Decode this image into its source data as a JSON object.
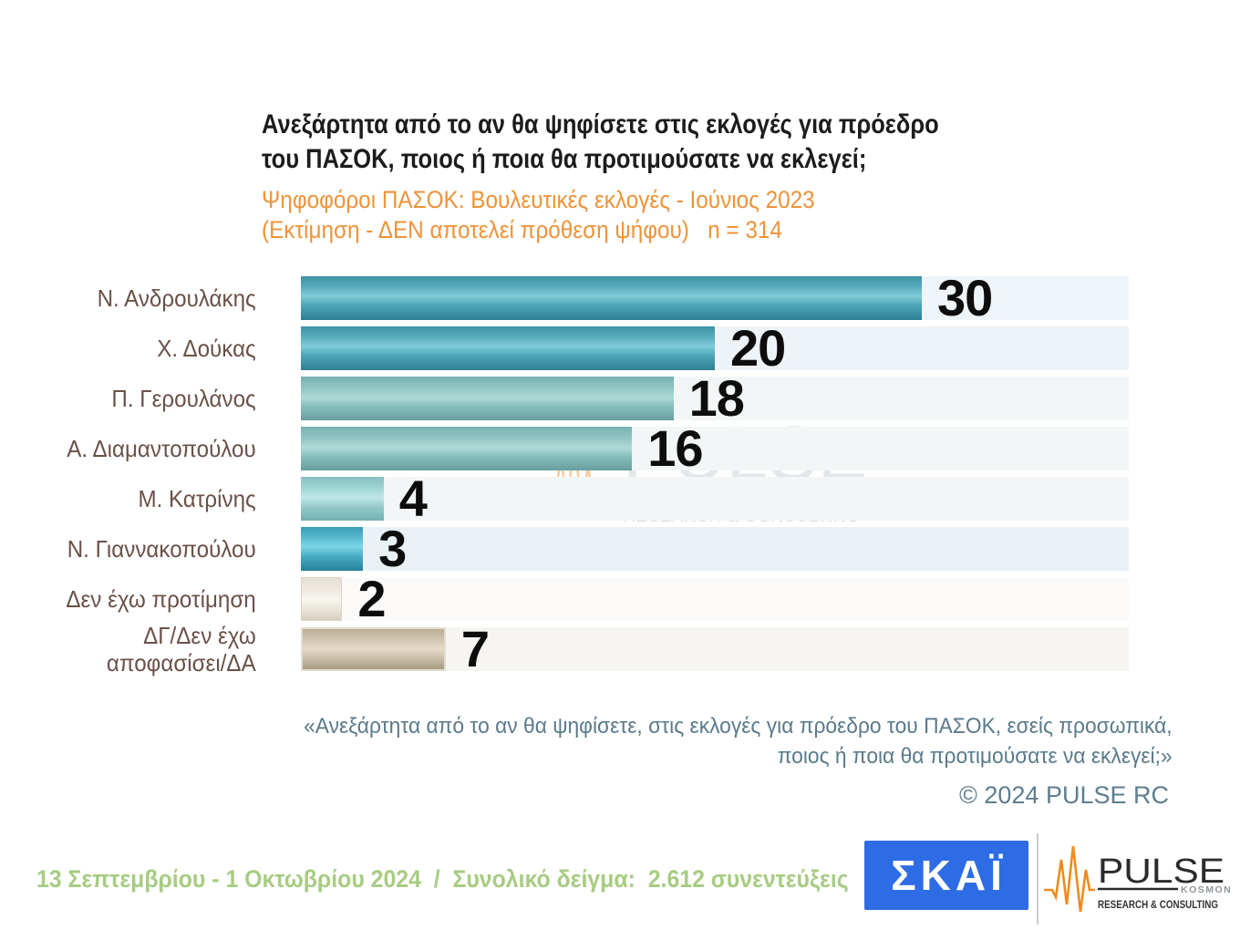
{
  "header": {
    "title_lines": [
      "Ανεξάρτητα από το αν θα ψηφίσετε στις εκλογές για πρόεδρο",
      "του ΠΑΣΟΚ, ποιος ή ποια θα προτιμούσατε να εκλεγεί;"
    ],
    "subtitle_lines": [
      "Ψηφοφόροι ΠΑΣΟΚ: Βουλευτικές εκλογές - Ιούνιος 2023",
      "(Εκτίμηση - ΔΕΝ αποτελεί πρόθεση ψήφου)   n = 314"
    ],
    "sample_size": "n = 314"
  },
  "chart_data": {
    "type": "bar",
    "orientation": "horizontal",
    "title": "Ανεξάρτητα από το αν θα ψηφίσετε στις εκλογές για πρόεδρο του ΠΑΣΟΚ, ποιος ή ποια θα προτιμούσατε να εκλεγεί;",
    "subtitle": "Ψηφοφόροι ΠΑΣΟΚ: Βουλευτικές εκλογές - Ιούνιος 2023 (Εκτίμηση - ΔΕΝ αποτελεί πρόθεση ψήφου) n = 314",
    "categories": [
      "Ν. Ανδρουλάκης",
      "Χ. Δούκας",
      "Π. Γερουλάνος",
      "Α. Διαμαντοπούλου",
      "Μ. Κατρίνης",
      "Ν. Γιαννακοπούλου",
      "Δεν έχω προτίμηση",
      "ΔΓ/Δεν έχω αποφασίσει/ΔΑ"
    ],
    "values": [
      30,
      20,
      18,
      16,
      4,
      3,
      2,
      7
    ],
    "axis_max": 40,
    "grid": false,
    "legend": false,
    "value_labels_shown": true,
    "rows": [
      {
        "label": "Ν. Ανδρουλάκης",
        "value": 30,
        "palette": "teal",
        "bar_color": "#4aa3b5",
        "track_color": "#eef4f7"
      },
      {
        "label": "Χ. Δούκας",
        "value": 20,
        "palette": "teal",
        "bar_color": "#4aa3b5",
        "track_color": "#edf3f6"
      },
      {
        "label": "Π. Γερουλάνος",
        "value": 18,
        "palette": "sage",
        "bar_color": "#8fc2c1",
        "track_color": "#f2f6f7"
      },
      {
        "label": "Α. Διαμαντοπούλου",
        "value": 16,
        "palette": "sage",
        "bar_color": "#8fc2c1",
        "track_color": "#f2f6f7"
      },
      {
        "label": "Μ. Κατρίνης",
        "value": 4,
        "palette": "sage-light",
        "bar_color": "#a5d6d7",
        "track_color": "#f3f6f7"
      },
      {
        "label": "Ν. Γιαννακοπούλου",
        "value": 3,
        "palette": "teal-bright",
        "bar_color": "#4fb1c8",
        "track_color": "#e9f1f5"
      },
      {
        "label": "Δεν έχω προτίμηση",
        "value": 2,
        "palette": "cream",
        "bar_color": "#efeae1",
        "track_color": "#fbfaf8"
      },
      {
        "label": "ΔΓ/Δεν έχω αποφασίσει/ΔΑ",
        "value": 7,
        "palette": "tan",
        "bar_color": "#cfc3ad",
        "track_color": "#f7f5f1"
      }
    ]
  },
  "watermark": {
    "brand": "PULSE",
    "brand_sub": "KOSMON",
    "tagline": "RESEARCH & CONSULTING"
  },
  "footer": {
    "quote_lines": [
      "«Ανεξάρτητα από το αν θα ψηφίσετε, στις εκλογές για πρόεδρο του ΠΑΣΟΚ, εσείς προσωπικά,",
      "ποιος ή ποια θα προτιμούσατε να εκλεγεί;»"
    ],
    "copyright": "© 2024 PULSE RC",
    "fieldwork": "13 Σεπτεμβρίου - 1 Οκτωβρίου 2024  /  Συνολικό δείγμα:  2.612 συνεντεύξεις"
  },
  "logos": {
    "skai": "ΣΚΑΪ",
    "pulse_brand": "PULSE",
    "pulse_sub": "KOSMON",
    "pulse_tagline": "RESEARCH & CONSULTING"
  },
  "colors": {
    "subtitle_orange": "#ee9338",
    "label_brown": "#6a5148",
    "quote_blue_gray": "#5a7a8b",
    "copyright_blue_gray": "#5e7d8e",
    "fieldwork_green": "#a7cc82",
    "skai_blue": "#2d6ce4",
    "pulse_orange": "#ef8b1f",
    "value_black": "#0d0d0d",
    "background": "#ffffff"
  }
}
